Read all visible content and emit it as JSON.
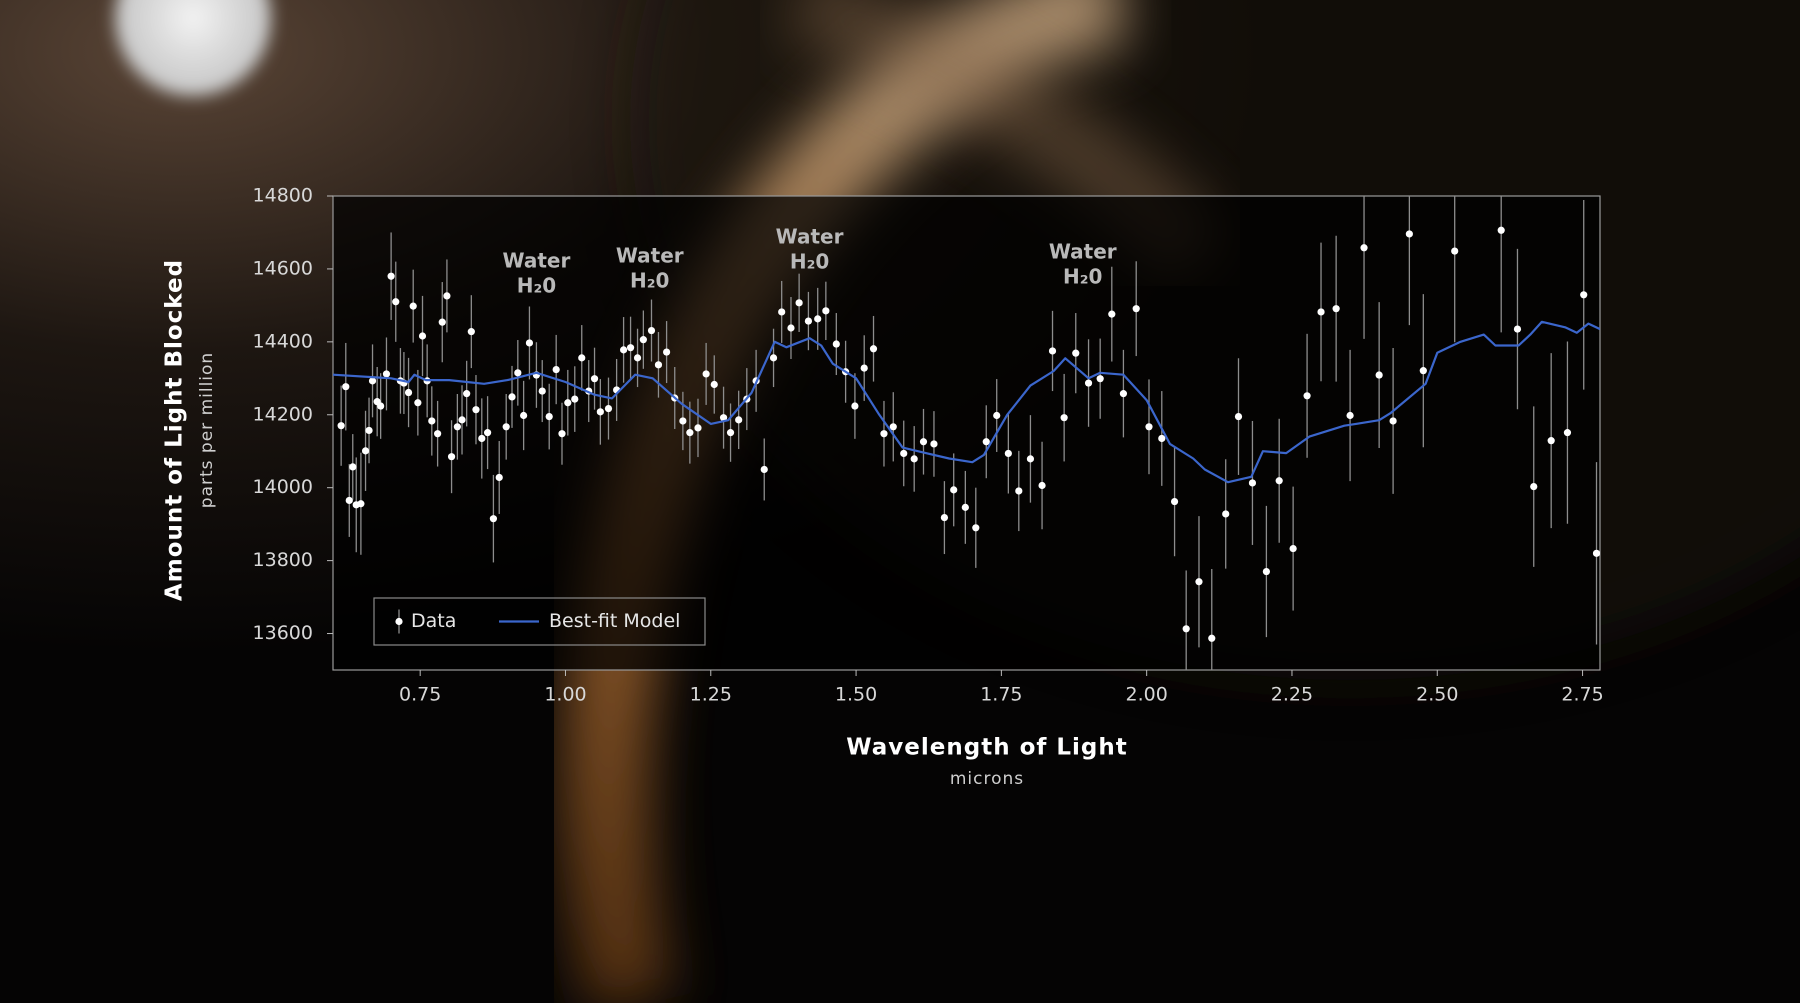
{
  "chart_data": {
    "type": "scatter",
    "x_label": "Wavelength of Light",
    "x_unit": "microns",
    "y_label": "Amount of Light Blocked",
    "y_unit": "parts per million",
    "xlim": [
      0.6,
      2.78
    ],
    "ylim": [
      13500,
      14800
    ],
    "xticks": [
      0.75,
      {
        "value": 1,
        "label": "1.00"
      },
      1.25,
      {
        "value": 1.5,
        "label": "1.50"
      },
      1.75,
      {
        "value": 2,
        "label": "2.00"
      },
      2.25,
      {
        "value": 2.5,
        "label": "2.50"
      },
      2.75
    ],
    "yticks": [
      13600,
      13800,
      14000,
      14200,
      14400,
      14600,
      14800
    ],
    "legend": "lower left",
    "annotations": [
      {
        "x": 0.95,
        "text": "Water",
        "formula": "H₂0"
      },
      {
        "x": 1.145,
        "text": "Water",
        "formula": "H₂0"
      },
      {
        "x": 1.42,
        "text": "Water",
        "formula": "H₂0"
      },
      {
        "x": 1.89,
        "text": "Water",
        "formula": "H₂0"
      }
    ],
    "series": [
      {
        "name": "Data",
        "color": "#ffffff",
        "x": [
          0.614,
          0.622,
          0.628,
          0.634,
          0.64,
          0.648,
          0.656,
          0.662,
          0.668,
          0.676,
          0.682,
          0.692,
          0.7,
          0.708,
          0.716,
          0.722,
          0.73,
          0.738,
          0.746,
          0.754,
          0.762,
          0.77,
          0.78,
          0.788,
          0.796,
          0.804,
          0.814,
          0.822,
          0.83,
          0.838,
          0.846,
          0.856,
          0.866,
          0.876,
          0.886,
          0.898,
          0.908,
          0.918,
          0.928,
          0.938,
          0.95,
          0.96,
          0.972,
          0.984,
          0.994,
          1.004,
          1.016,
          1.028,
          1.04,
          1.05,
          1.06,
          1.074,
          1.088,
          1.1,
          1.112,
          1.124,
          1.134,
          1.148,
          1.16,
          1.174,
          1.188,
          1.202,
          1.214,
          1.228,
          1.242,
          1.256,
          1.272,
          1.284,
          1.298,
          1.312,
          1.328,
          1.342,
          1.358,
          1.372,
          1.388,
          1.402,
          1.418,
          1.434,
          1.448,
          1.466,
          1.482,
          1.498,
          1.514,
          1.53,
          1.548,
          1.564,
          1.582,
          1.6,
          1.616,
          1.634,
          1.652,
          1.668,
          1.688,
          1.706,
          1.724,
          1.742,
          1.762,
          1.78,
          1.8,
          1.82,
          1.838,
          1.858,
          1.878,
          1.9,
          1.92,
          1.94,
          1.96,
          1.982,
          2.004,
          2.026,
          2.048,
          2.068,
          2.09,
          2.112,
          2.136,
          2.158,
          2.182,
          2.206,
          2.228,
          2.252,
          2.276,
          2.3,
          2.326,
          2.35,
          2.374,
          2.4,
          2.424,
          2.452,
          2.476,
          2.53,
          2.61,
          2.638,
          2.666,
          2.696,
          2.724,
          2.752,
          2.774
        ],
        "values": [
          14170,
          14277,
          13965,
          14057,
          13953,
          13956,
          14101,
          14157,
          14293,
          14236,
          14224,
          14312,
          14580,
          14510,
          14293,
          14287,
          14261,
          14498,
          14233,
          14416,
          14293,
          14183,
          14148,
          14454,
          14526,
          14085,
          14167,
          14186,
          14258,
          14428,
          14214,
          14135,
          14151,
          13915,
          14028,
          14167,
          14249,
          14315,
          14198,
          14397,
          14309,
          14265,
          14195,
          14324,
          14148,
          14233,
          14243,
          14356,
          14265,
          14299,
          14208,
          14217,
          14268,
          14378,
          14384,
          14356,
          14406,
          14431,
          14337,
          14372,
          14246,
          14183,
          14151,
          14164,
          14312,
          14283,
          14192,
          14151,
          14186,
          14243,
          14293,
          14050,
          14356,
          14482,
          14438,
          14507,
          14457,
          14463,
          14485,
          14394,
          14318,
          14224,
          14328,
          14381,
          14148,
          14167,
          14094,
          14079,
          14126,
          14120,
          13918,
          13994,
          13946,
          13890,
          14126,
          14198,
          14094,
          13991,
          14079,
          14006,
          14375,
          14192,
          14369,
          14287,
          14299,
          14476,
          14258,
          14491,
          14167,
          14135,
          13962,
          13613,
          13742,
          13587,
          13928,
          14195,
          14013,
          13770,
          14019,
          13833,
          14252,
          14482,
          14491,
          14198,
          14658,
          14309,
          14183,
          14696,
          14321,
          14649,
          14706,
          14435,
          14003,
          14129,
          14151,
          14529,
          13820
        ],
        "errors": [
          110,
          120,
          100,
          90,
          130,
          140,
          110,
          90,
          100,
          95,
          90,
          100,
          120,
          110,
          90,
          85,
          95,
          100,
          90,
          110,
          100,
          95,
          90,
          110,
          100,
          100,
          90,
          95,
          90,
          100,
          95,
          110,
          100,
          120,
          100,
          90,
          85,
          90,
          95,
          100,
          90,
          85,
          90,
          95,
          85,
          90,
          90,
          90,
          85,
          85,
          90,
          85,
          85,
          90,
          85,
          80,
          80,
          85,
          90,
          85,
          85,
          80,
          85,
          80,
          85,
          80,
          85,
          80,
          80,
          85,
          85,
          85,
          80,
          85,
          85,
          80,
          80,
          85,
          80,
          85,
          85,
          90,
          90,
          90,
          90,
          95,
          90,
          90,
          90,
          90,
          100,
          100,
          100,
          110,
          100,
          100,
          110,
          110,
          120,
          120,
          110,
          120,
          110,
          120,
          110,
          130,
          120,
          130,
          130,
          130,
          150,
          160,
          180,
          190,
          150,
          160,
          170,
          180,
          170,
          170,
          170,
          190,
          200,
          180,
          250,
          200,
          200,
          250,
          210,
          250,
          280,
          220,
          220,
          240,
          250,
          260,
          250
        ]
      },
      {
        "name": "Best-fit Model",
        "color": "#3b66cc",
        "x": [
          0.6,
          0.7,
          0.73,
          0.74,
          0.76,
          0.8,
          0.86,
          0.9,
          0.95,
          1.0,
          1.05,
          1.08,
          1.12,
          1.15,
          1.2,
          1.25,
          1.28,
          1.32,
          1.36,
          1.38,
          1.42,
          1.44,
          1.46,
          1.5,
          1.54,
          1.58,
          1.62,
          1.66,
          1.7,
          1.72,
          1.76,
          1.8,
          1.84,
          1.86,
          1.9,
          1.92,
          1.96,
          2.0,
          2.04,
          2.08,
          2.1,
          2.14,
          2.18,
          2.2,
          2.24,
          2.28,
          2.34,
          2.36,
          2.4,
          2.42,
          2.48,
          2.5,
          2.54,
          2.58,
          2.6,
          2.64,
          2.66,
          2.68,
          2.72,
          2.74,
          2.76,
          2.78
        ],
        "values": [
          14310,
          14300,
          14290,
          14310,
          14295,
          14295,
          14285,
          14295,
          14315,
          14290,
          14255,
          14245,
          14310,
          14300,
          14230,
          14175,
          14185,
          14260,
          14400,
          14385,
          14410,
          14390,
          14340,
          14300,
          14200,
          14110,
          14095,
          14080,
          14070,
          14090,
          14200,
          14280,
          14320,
          14355,
          14300,
          14315,
          14310,
          14240,
          14120,
          14080,
          14050,
          14015,
          14030,
          14100,
          14095,
          14140,
          14170,
          14175,
          14185,
          14205,
          14285,
          14370,
          14400,
          14420,
          14390,
          14390,
          14420,
          14455,
          14440,
          14425,
          14450,
          14435
        ]
      }
    ]
  }
}
